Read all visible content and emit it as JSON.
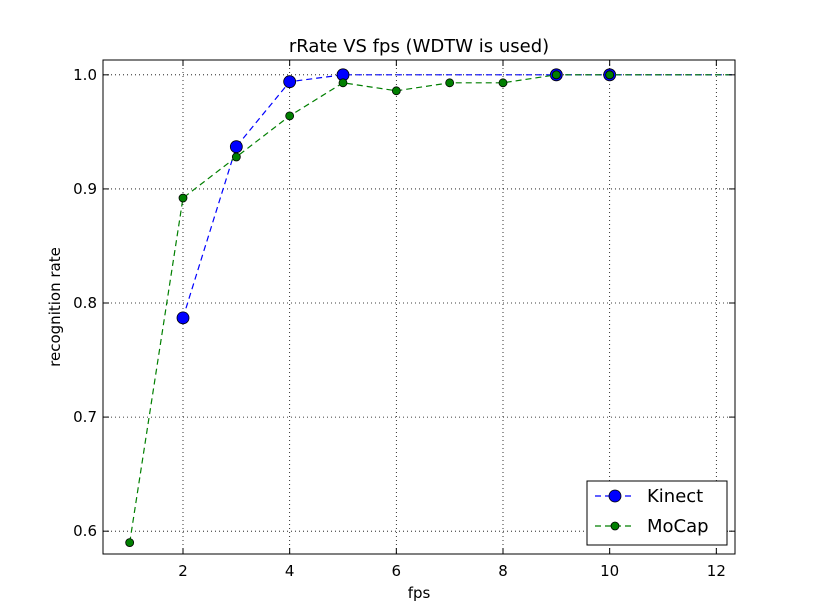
{
  "chart_data": {
    "type": "line",
    "title": "rRate VS fps (WDTW is used)",
    "xlabel": "fps",
    "ylabel": "recognition rate",
    "xlim": [
      0.5,
      12.35
    ],
    "ylim": [
      0.58,
      1.013
    ],
    "xticks": [
      2,
      4,
      6,
      8,
      10,
      12
    ],
    "yticks": [
      0.6,
      0.7,
      0.8,
      0.9,
      1.0
    ],
    "ytick_labels": [
      "0.6",
      "0.7",
      "0.8",
      "0.9",
      "1.0"
    ],
    "grid": true,
    "legend_position": "lower-right",
    "series": [
      {
        "name": "Kinect",
        "color": "#0000ff",
        "marker_size": "large",
        "line_style": "dashed",
        "x": [
          2,
          3,
          4,
          5,
          6,
          7,
          8,
          9,
          10,
          11,
          12,
          12.35
        ],
        "y": [
          0.787,
          0.937,
          0.994,
          1.0,
          1.0,
          1.0,
          1.0,
          1.0,
          1.0,
          1.0,
          1.0,
          1.0
        ],
        "marker_x": [
          2,
          3,
          4,
          5,
          9,
          10
        ],
        "marker_y": [
          0.787,
          0.937,
          0.994,
          1.0,
          1.0,
          1.0
        ]
      },
      {
        "name": "MoCap",
        "color": "#007f00",
        "marker_size": "small",
        "line_style": "dashed",
        "x": [
          1,
          2,
          3,
          4,
          5,
          6,
          7,
          8,
          9,
          10,
          11,
          12,
          12.35
        ],
        "y": [
          0.59,
          0.892,
          0.928,
          0.964,
          0.993,
          0.986,
          0.993,
          0.993,
          1.0,
          1.0,
          1.0,
          1.0,
          1.0
        ],
        "marker_x": [
          1,
          2,
          3,
          4,
          5,
          6,
          7,
          8,
          9,
          10
        ],
        "marker_y": [
          0.59,
          0.892,
          0.928,
          0.964,
          0.993,
          0.986,
          0.993,
          0.993,
          1.0,
          1.0
        ]
      }
    ]
  }
}
